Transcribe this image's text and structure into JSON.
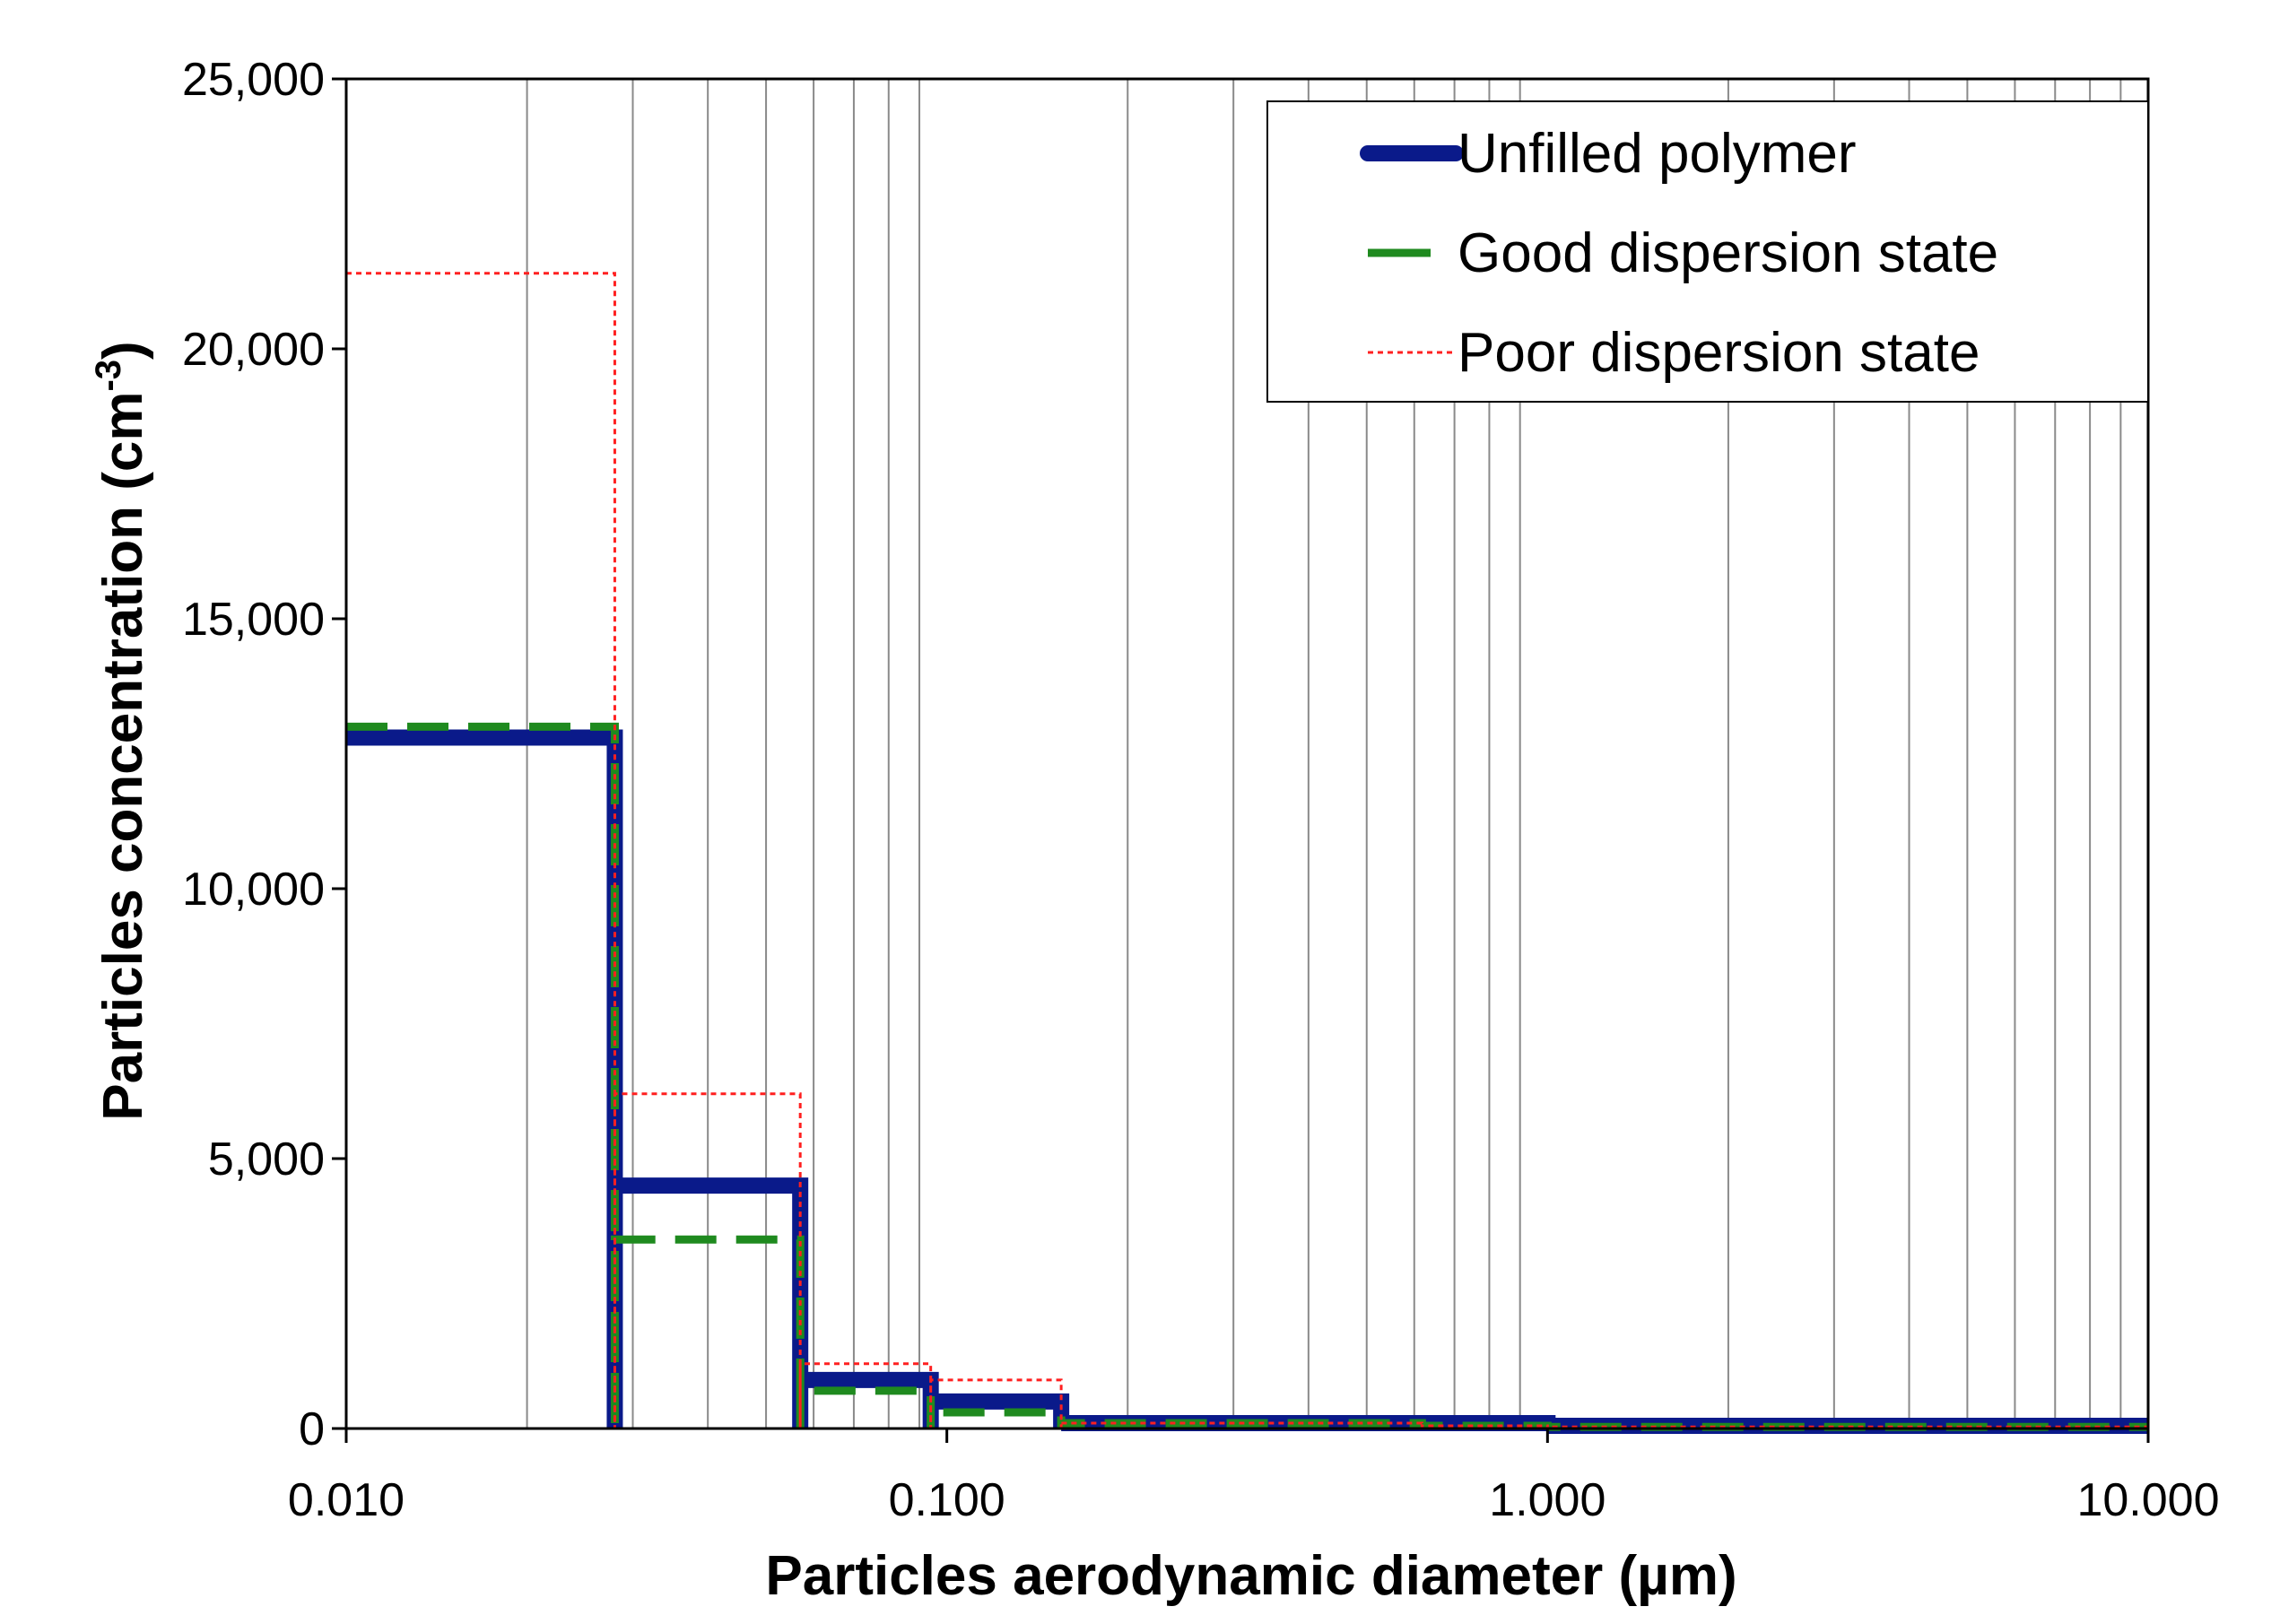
{
  "chart_data": {
    "type": "line",
    "subtype": "step",
    "xscale": "log",
    "xlabel": "Particles aerodynamic diameter (µm)",
    "ylabel_main": "Particles concentration (cm",
    "ylabel_sup": "-3",
    "ylabel_close": ")",
    "xlim": [
      0.01,
      10
    ],
    "ylim": [
      0,
      25000
    ],
    "xticks": [
      0.01,
      0.1,
      1,
      10
    ],
    "xtick_labels": [
      "0.010",
      "0.100",
      "1.000",
      "10.000"
    ],
    "yticks": [
      0,
      5000,
      10000,
      15000,
      20000,
      25000
    ],
    "ytick_labels": [
      "0",
      "5,000",
      "10,000",
      "15,000",
      "20,000",
      "25,000"
    ],
    "grid": "vertical-log",
    "legend_position": "top-right",
    "bin_edges": [
      0.01,
      0.028,
      0.057,
      0.094,
      0.155,
      0.618,
      1.0,
      10.0
    ],
    "series": [
      {
        "name": "Unfilled polymer",
        "color": "#0a1a8a",
        "style": "solid-thick",
        "values": [
          12800,
          4500,
          900,
          500,
          100,
          100,
          50
        ]
      },
      {
        "name": "Good dispersion state",
        "color": "#1f8a1f",
        "style": "dashed",
        "values": [
          13000,
          3500,
          700,
          300,
          100,
          50,
          30
        ]
      },
      {
        "name": "Poor dispersion state",
        "color": "#ff2020",
        "style": "dotted-thin",
        "values": [
          21400,
          6200,
          1200,
          900,
          100,
          50,
          30
        ]
      }
    ]
  }
}
